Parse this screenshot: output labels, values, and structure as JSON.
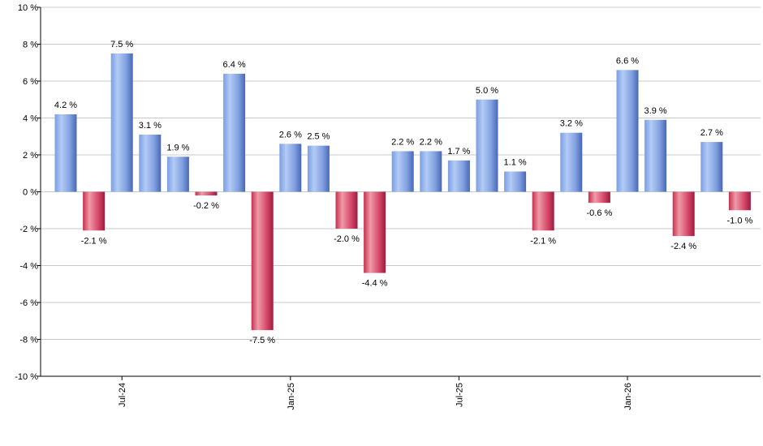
{
  "chart_data": {
    "type": "bar",
    "title": "",
    "xlabel": "",
    "ylabel": "",
    "ylim": [
      -10,
      10
    ],
    "y_ticks": [
      -10,
      -8,
      -6,
      -4,
      -2,
      0,
      2,
      4,
      6,
      8,
      10
    ],
    "y_tick_suffix": " %",
    "grid": true,
    "values": [
      4.2,
      -2.1,
      7.5,
      3.1,
      1.9,
      -0.2,
      6.4,
      -7.5,
      2.6,
      2.5,
      -2.0,
      -4.4,
      2.2,
      2.2,
      1.7,
      5.0,
      1.1,
      -2.1,
      3.2,
      -0.6,
      6.6,
      3.9,
      -2.4,
      2.7,
      -1.0
    ],
    "data_labels": [
      "4.2 %",
      "-2.1 %",
      "7.5 %",
      "3.1 %",
      "1.9 %",
      "-0.2 %",
      "6.4 %",
      "-7.5 %",
      "2.6 %",
      "2.5 %",
      "-2.0 %",
      "-4.4 %",
      "2.2 %",
      "2.2 %",
      "1.7 %",
      "5.0 %",
      "1.1 %",
      "-2.1 %",
      "3.2 %",
      "-0.6 %",
      "6.6 %",
      "3.9 %",
      "-2.4 %",
      "2.7 %",
      "-1.0 %"
    ],
    "x_tick_labels": [
      {
        "index": 2,
        "label": "Jul-24"
      },
      {
        "index": 8,
        "label": "Jan-25"
      },
      {
        "index": 14,
        "label": "Jul-25"
      },
      {
        "index": 20,
        "label": "Jan-26"
      }
    ],
    "colors": {
      "positive_light": "#a9c4f2",
      "positive_mid": "#7f9fe0",
      "positive_dark": "#4a67b4",
      "negative_light": "#f09aa8",
      "negative_mid": "#d6486a",
      "negative_dark": "#9c1c3c",
      "grid": "#c8c8c8"
    }
  }
}
